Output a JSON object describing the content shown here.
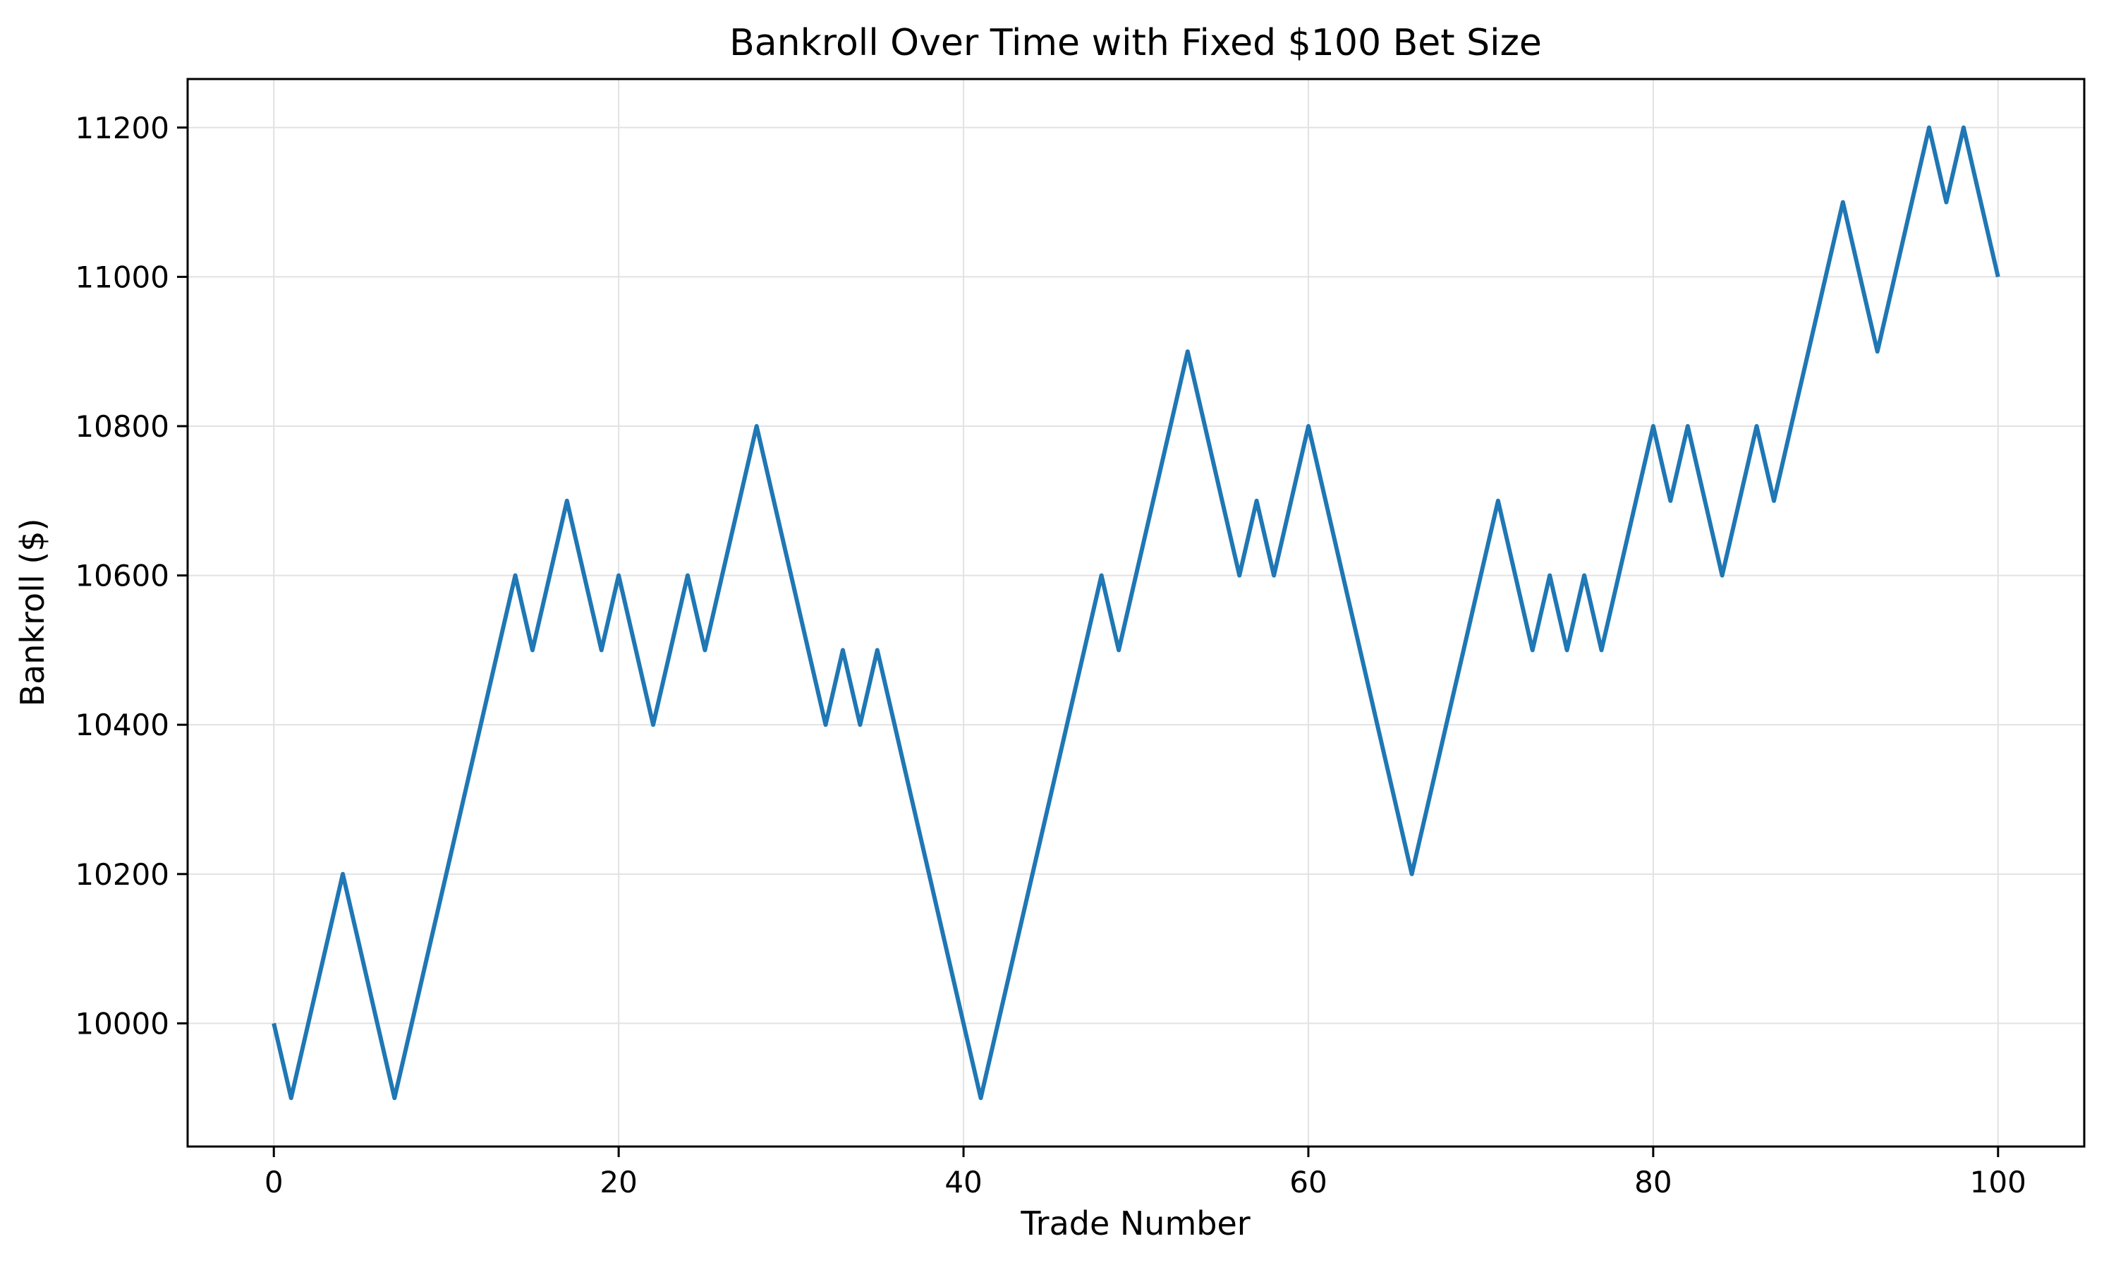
{
  "title": "Bankroll Over Time with Fixed $100 Bet Size",
  "x_axis": {
    "label": "Trade Number",
    "ticks": [
      0,
      20,
      40,
      60,
      80,
      100
    ]
  },
  "y_axis": {
    "label": "Bankroll ($)",
    "ticks": [
      10000,
      10200,
      10400,
      10600,
      10800,
      11000,
      11200
    ]
  },
  "colors": {
    "line": "#1f77b4",
    "grid": "#e2e2e2",
    "spine": "#000000",
    "background": "#ffffff",
    "text": "#000000"
  },
  "chart_data": {
    "type": "line",
    "title": "Bankroll Over Time with Fixed $100 Bet Size",
    "xlabel": "Trade Number",
    "ylabel": "Bankroll ($)",
    "xlim": [
      -5,
      105
    ],
    "ylim": [
      9835,
      11265
    ],
    "grid": true,
    "legend": "none",
    "x": [
      0,
      1,
      2,
      3,
      4,
      5,
      6,
      7,
      8,
      9,
      10,
      11,
      12,
      13,
      14,
      15,
      16,
      17,
      18,
      19,
      20,
      21,
      22,
      23,
      24,
      25,
      26,
      27,
      28,
      29,
      30,
      31,
      32,
      33,
      34,
      35,
      36,
      37,
      38,
      39,
      40,
      41,
      42,
      43,
      44,
      45,
      46,
      47,
      48,
      49,
      50,
      51,
      52,
      53,
      54,
      55,
      56,
      57,
      58,
      59,
      60,
      61,
      62,
      63,
      64,
      65,
      66,
      67,
      68,
      69,
      70,
      71,
      72,
      73,
      74,
      75,
      76,
      77,
      78,
      79,
      80,
      81,
      82,
      83,
      84,
      85,
      86,
      87,
      88,
      89,
      90,
      91,
      92,
      93,
      94,
      95,
      96,
      97,
      98,
      99,
      100
    ],
    "values": [
      10000,
      9900,
      10000,
      10100,
      10200,
      10100,
      10000,
      9900,
      10000,
      10100,
      10200,
      10300,
      10400,
      10500,
      10600,
      10500,
      10600,
      10700,
      10600,
      10500,
      10600,
      10500,
      10400,
      10500,
      10600,
      10500,
      10600,
      10700,
      10800,
      10700,
      10600,
      10500,
      10400,
      10500,
      10400,
      10500,
      10400,
      10300,
      10200,
      10100,
      10000,
      9900,
      10000,
      10100,
      10200,
      10300,
      10400,
      10500,
      10600,
      10500,
      10600,
      10700,
      10800,
      10900,
      10800,
      10700,
      10600,
      10700,
      10600,
      10700,
      10800,
      10700,
      10600,
      10500,
      10400,
      10300,
      10200,
      10300,
      10400,
      10500,
      10600,
      10700,
      10600,
      10500,
      10600,
      10500,
      10600,
      10500,
      10600,
      10700,
      10800,
      10700,
      10800,
      10700,
      10600,
      10700,
      10800,
      10700,
      10800,
      10900,
      11000,
      11100,
      11000,
      10900,
      11000,
      11100,
      11200,
      11100,
      11200,
      11100,
      11000
    ]
  }
}
